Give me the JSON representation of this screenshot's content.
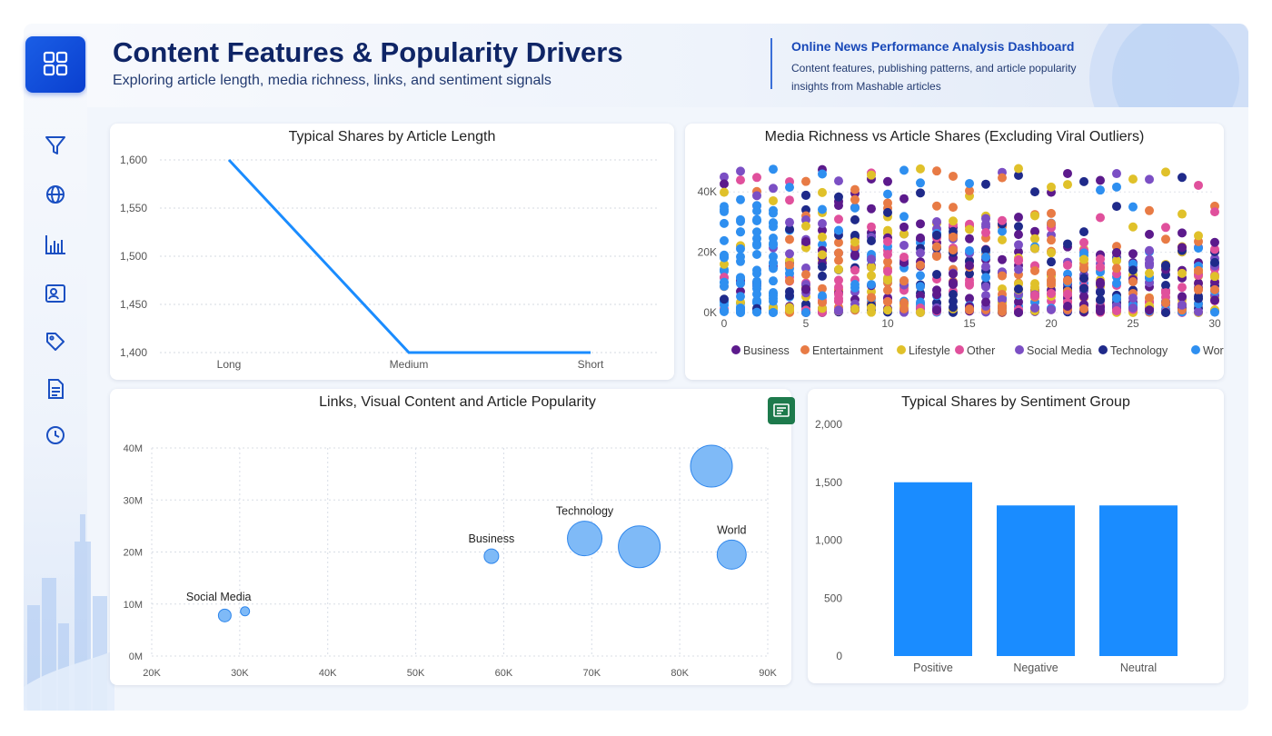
{
  "header": {
    "title": "Content Features & Popularity Drivers",
    "subtitle": "Exploring article length, media richness, links, and sentiment signals",
    "right_title": "Online News Performance Analysis Dashboard",
    "right_description": "Content features, publishing patterns, and article popularity insights from Mashable articles"
  },
  "sidebar": {
    "icons": [
      "grid-icon",
      "filter-icon",
      "globe-icon",
      "bar-chart-icon",
      "person-card-icon",
      "tag-icon",
      "document-icon",
      "clock-icon"
    ]
  },
  "colors": {
    "accent": "#1a8cff",
    "Business": "#5c1a8c",
    "Entertainment": "#e87b45",
    "Lifestyle": "#e0c12a",
    "Other": "#e0509c",
    "Social Media": "#7b4fc4",
    "Technology": "#1f2a8a",
    "World": "#2e8ff0"
  },
  "chart_data": [
    {
      "id": "length",
      "type": "line",
      "title": "Typical Shares by Article Length",
      "categories": [
        "Long",
        "Medium",
        "Short"
      ],
      "values": [
        1600,
        1400,
        1400
      ],
      "ylim": [
        1400,
        1600
      ],
      "yticks": [
        1400,
        1450,
        1500,
        1550,
        1600
      ],
      "ytick_labels": [
        "1,400",
        "1,450",
        "1,500",
        "1,550",
        "1,600"
      ],
      "grid": true
    },
    {
      "id": "media",
      "type": "scatter",
      "title": "Media Richness vs Article Shares (Excluding Viral Outliers)",
      "xlim": [
        0,
        30
      ],
      "xticks": [
        0,
        5,
        10,
        15,
        20,
        25,
        30
      ],
      "ylim": [
        0,
        50000
      ],
      "yticks": [
        0,
        20000,
        40000
      ],
      "ytick_labels": [
        "0K",
        "20K",
        "40K"
      ],
      "legend": [
        "Business",
        "Entertainment",
        "Lifestyle",
        "Other",
        "Social Media",
        "Technology",
        "World"
      ],
      "legend_position": "bottom",
      "note": "Dense vertical strips of points at each integer x value from 0 to 30, concentrated below ~25K with sparse points up to ~50K; World (blue) densest at low x."
    },
    {
      "id": "links",
      "type": "scatter",
      "title": "Links, Visual Content and Article Popularity",
      "xlim": [
        20000,
        90000
      ],
      "xticks": [
        20000,
        30000,
        40000,
        50000,
        60000,
        70000,
        80000,
        90000
      ],
      "xtick_labels": [
        "20K",
        "30K",
        "40K",
        "50K",
        "60K",
        "70K",
        "80K",
        "90K"
      ],
      "ylim": [
        0,
        40000000
      ],
      "yticks": [
        0,
        10000000,
        20000000,
        30000000,
        40000000
      ],
      "ytick_labels": [
        "0M",
        "10M",
        "20M",
        "30M",
        "40M"
      ],
      "grid": true,
      "points": [
        {
          "x": 28300,
          "y": 7800000,
          "r": 7,
          "label": ""
        },
        {
          "x": 30600,
          "y": 8600000,
          "r": 5,
          "label": "Social Media"
        },
        {
          "x": 58600,
          "y": 19200000,
          "r": 8,
          "label": "Business"
        },
        {
          "x": 69200,
          "y": 22600000,
          "r": 19,
          "label": "Technology"
        },
        {
          "x": 75400,
          "y": 21000000,
          "r": 23,
          "label": ""
        },
        {
          "x": 83600,
          "y": 36500000,
          "r": 23,
          "label": ""
        },
        {
          "x": 85900,
          "y": 19500000,
          "r": 16,
          "label": "World"
        }
      ]
    },
    {
      "id": "sentiment",
      "type": "bar",
      "title": "Typical Shares by Sentiment Group",
      "categories": [
        "Positive",
        "Negative",
        "Neutral"
      ],
      "values": [
        1500,
        1300,
        1300
      ],
      "ylim": [
        0,
        2000
      ],
      "yticks": [
        0,
        500,
        1000,
        1500,
        2000
      ],
      "ytick_labels": [
        "0",
        "500",
        "1,000",
        "1,500",
        "2,000"
      ]
    }
  ]
}
